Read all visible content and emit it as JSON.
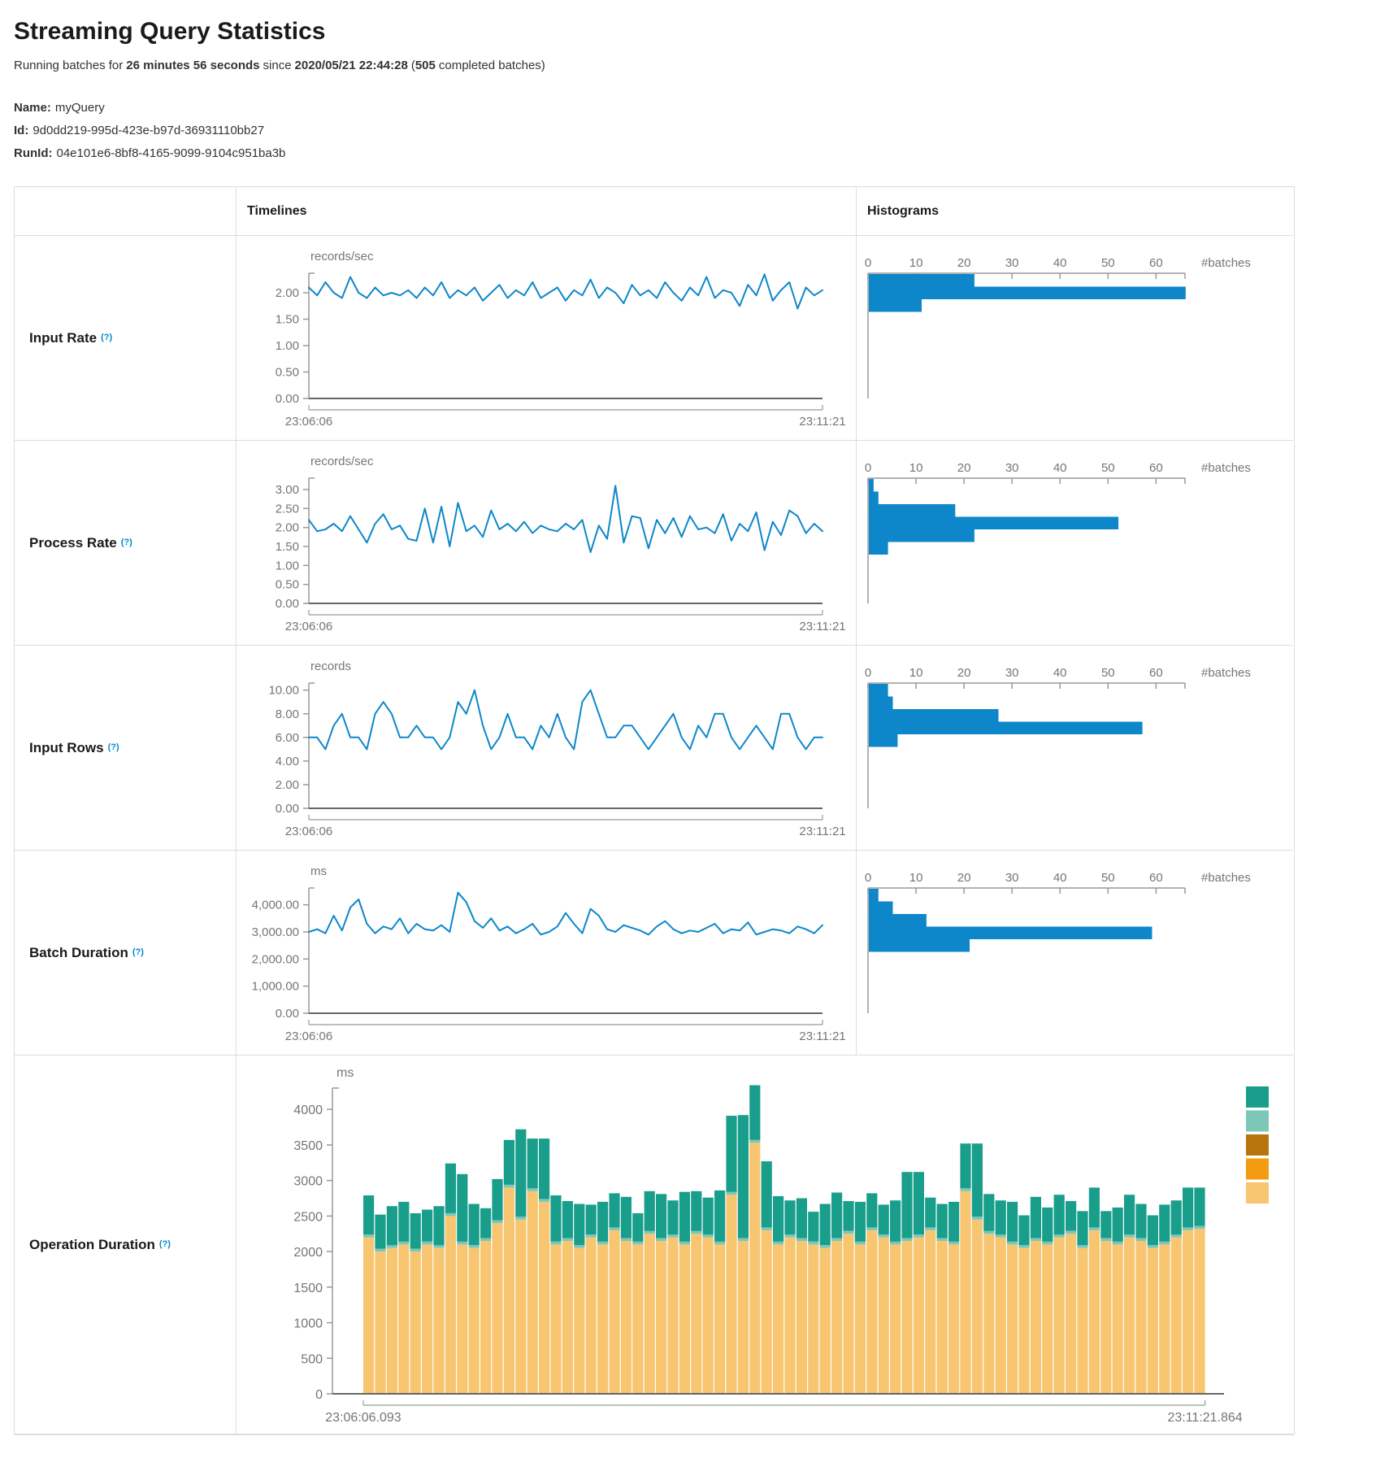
{
  "page": {
    "title": "Streaming Query Statistics",
    "sub": {
      "p1": "Running batches for",
      "b1": "26 minutes 56 seconds",
      "p2": "since",
      "b2": "2020/05/21 22:44:28",
      "p3": "(",
      "b3": "505",
      "p4": "completed batches)"
    }
  },
  "query": {
    "name_label": "Name:",
    "name": "myQuery",
    "id_label": "Id:",
    "id": "9d0dd219-995d-423e-b97d-36931110bb27",
    "runid_label": "RunId:",
    "runid": "04e101e6-8bf8-4165-9099-9104c951ba3b"
  },
  "table": {
    "timelines_header": "Timelines",
    "histograms_header": "Histograms",
    "rows": [
      {
        "label": "Input Rate",
        "help": "(?)"
      },
      {
        "label": "Process Rate",
        "help": "(?)"
      },
      {
        "label": "Input Rows",
        "help": "(?)"
      },
      {
        "label": "Batch Duration",
        "help": "(?)"
      },
      {
        "label": "Operation Duration",
        "help": "(?)"
      }
    ]
  },
  "colors": {
    "line_blue": "#0d87c9",
    "hist_blue": "#0d87c9",
    "axis_line": "#999999",
    "axis_strong": "#666666",
    "tick_text": "#757575",
    "help_blue": "#0088cc",
    "legend": [
      "#1a9e8c",
      "#7cc7b8",
      "#b8750e",
      "#f39c12",
      "#f8c571"
    ],
    "stack": {
      "base": "#f8c571",
      "sliver": "#7cc7b8",
      "top": "#1a9e8c"
    }
  },
  "chart_data": [
    {
      "type": "line",
      "name": "input-rate",
      "unit": "records/sec",
      "x_start": "23:06:06",
      "x_end": "23:11:21",
      "ymax": 2.37,
      "yticks": [
        0,
        0.5,
        1,
        1.5,
        2
      ],
      "ytick_labels": [
        "0.00",
        "0.50",
        "1.00",
        "1.50",
        "2.00"
      ],
      "values": [
        2.1,
        1.95,
        2.2,
        2.0,
        1.9,
        2.3,
        2.0,
        1.9,
        2.1,
        1.95,
        2.0,
        1.95,
        2.05,
        1.9,
        2.1,
        1.95,
        2.2,
        1.9,
        2.05,
        1.95,
        2.1,
        1.85,
        2.0,
        2.15,
        1.9,
        2.05,
        1.95,
        2.2,
        1.9,
        2.0,
        2.1,
        1.85,
        2.05,
        1.95,
        2.25,
        1.9,
        2.1,
        2.0,
        1.8,
        2.15,
        1.95,
        2.05,
        1.9,
        2.2,
        2.0,
        1.85,
        2.1,
        1.95,
        2.3,
        1.9,
        2.05,
        2.0,
        1.75,
        2.15,
        1.95,
        2.35,
        1.85,
        2.05,
        2.2,
        1.7,
        2.1,
        1.95,
        2.05
      ],
      "histogram": {
        "xlabel": "#batches",
        "tick_values": [
          0,
          10,
          20,
          30,
          40,
          50,
          60
        ],
        "counts": [
          22,
          66,
          11
        ]
      }
    },
    {
      "type": "line",
      "name": "process-rate",
      "unit": "records/sec",
      "x_start": "23:06:06",
      "x_end": "23:11:21",
      "ymax": 3.3,
      "yticks": [
        0,
        0.5,
        1,
        1.5,
        2,
        2.5,
        3
      ],
      "ytick_labels": [
        "0.00",
        "0.50",
        "1.00",
        "1.50",
        "2.00",
        "2.50",
        "3.00"
      ],
      "values": [
        2.2,
        1.9,
        1.95,
        2.1,
        1.9,
        2.3,
        1.95,
        1.6,
        2.1,
        2.35,
        1.95,
        2.05,
        1.7,
        1.65,
        2.5,
        1.6,
        2.55,
        1.5,
        2.65,
        1.9,
        2.05,
        1.75,
        2.45,
        1.95,
        2.1,
        1.9,
        2.15,
        1.85,
        2.05,
        1.95,
        1.9,
        2.1,
        1.95,
        2.2,
        1.35,
        2.05,
        1.7,
        3.1,
        1.6,
        2.3,
        2.25,
        1.45,
        2.2,
        1.85,
        2.25,
        1.75,
        2.3,
        1.95,
        2.0,
        1.85,
        2.35,
        1.65,
        2.1,
        1.9,
        2.4,
        1.4,
        2.15,
        1.8,
        2.45,
        2.3,
        1.85,
        2.1,
        1.9
      ],
      "histogram": {
        "xlabel": "#batches",
        "tick_values": [
          0,
          10,
          20,
          30,
          40,
          50,
          60
        ],
        "counts": [
          1,
          2,
          18,
          52,
          22,
          4
        ]
      }
    },
    {
      "type": "line",
      "name": "input-rows",
      "unit": "records",
      "x_start": "23:06:06",
      "x_end": "23:11:21",
      "ymax": 10.6,
      "yticks": [
        0,
        2,
        4,
        6,
        8,
        10
      ],
      "ytick_labels": [
        "0.00",
        "2.00",
        "4.00",
        "6.00",
        "8.00",
        "10.00"
      ],
      "values": [
        6,
        6,
        5,
        7,
        8,
        6,
        6,
        5,
        8,
        9,
        8,
        6,
        6,
        7,
        6,
        6,
        5,
        6,
        9,
        8,
        10,
        7,
        5,
        6,
        8,
        6,
        6,
        5,
        7,
        6,
        8,
        6,
        5,
        9,
        10,
        8,
        6,
        6,
        7,
        7,
        6,
        5,
        6,
        7,
        8,
        6,
        5,
        7,
        6,
        8,
        8,
        6,
        5,
        6,
        7,
        6,
        5,
        8,
        8,
        6,
        5,
        6,
        6
      ],
      "histogram": {
        "xlabel": "#batches",
        "tick_values": [
          0,
          10,
          20,
          30,
          40,
          50,
          60
        ],
        "counts": [
          4,
          5,
          27,
          57,
          6
        ]
      }
    },
    {
      "type": "line",
      "name": "batch-duration",
      "unit": "ms",
      "x_start": "23:06:06",
      "x_end": "23:11:21",
      "ymax": 4620,
      "yticks": [
        0,
        1000,
        2000,
        3000,
        4000
      ],
      "ytick_labels": [
        "0.00",
        "1,000.00",
        "2,000.00",
        "3,000.00",
        "4,000.00"
      ],
      "values": [
        3000,
        3100,
        2950,
        3600,
        3050,
        3900,
        4200,
        3300,
        2950,
        3200,
        3100,
        3500,
        2950,
        3300,
        3100,
        3050,
        3250,
        3000,
        4450,
        4100,
        3400,
        3150,
        3500,
        3050,
        3200,
        2950,
        3100,
        3300,
        2900,
        3000,
        3200,
        3700,
        3300,
        2950,
        3850,
        3600,
        3100,
        3000,
        3250,
        3150,
        3050,
        2900,
        3200,
        3400,
        3100,
        2950,
        3050,
        3000,
        3150,
        3300,
        2950,
        3100,
        3050,
        3350,
        2900,
        3000,
        3100,
        3050,
        2950,
        3200,
        3100,
        2950,
        3250
      ],
      "histogram": {
        "xlabel": "#batches",
        "tick_values": [
          0,
          10,
          20,
          30,
          40,
          50,
          60
        ],
        "counts": [
          2,
          5,
          12,
          59,
          21
        ]
      }
    },
    {
      "type": "stacked-bar",
      "name": "operation-duration",
      "unit": "ms",
      "x_start": "23:06:06.093",
      "x_end": "23:11:21.864",
      "ymax": 4300,
      "yticks": [
        0,
        500,
        1000,
        1500,
        2000,
        2500,
        3000,
        3500,
        4000
      ],
      "ytick_labels": [
        "0",
        "500",
        "1000",
        "1500",
        "2000",
        "2500",
        "3000",
        "3500",
        "4000"
      ],
      "sliver_value": 40,
      "base_values": [
        2200,
        2000,
        2050,
        2100,
        2000,
        2100,
        2050,
        2500,
        2100,
        2050,
        2150,
        2400,
        2900,
        2450,
        2850,
        2700,
        2100,
        2150,
        2050,
        2200,
        2100,
        2300,
        2150,
        2100,
        2250,
        2150,
        2200,
        2100,
        2250,
        2200,
        2100,
        2800,
        2150,
        3530,
        2300,
        2100,
        2200,
        2150,
        2100,
        2050,
        2150,
        2250,
        2100,
        2300,
        2200,
        2100,
        2150,
        2200,
        2300,
        2150,
        2100,
        2850,
        2450,
        2250,
        2200,
        2100,
        2050,
        2150,
        2100,
        2200,
        2250,
        2050,
        2300,
        2150,
        2100,
        2200,
        2150,
        2050,
        2100,
        2200,
        2300,
        2320
      ],
      "top_values": [
        550,
        480,
        550,
        560,
        500,
        450,
        550,
        700,
        950,
        580,
        420,
        580,
        630,
        1230,
        700,
        850,
        650,
        520,
        580,
        420,
        560,
        480,
        580,
        400,
        560,
        620,
        480,
        700,
        560,
        520,
        720,
        1070,
        1730,
        770,
        930,
        640,
        480,
        560,
        420,
        580,
        640,
        420,
        560,
        480,
        420,
        580,
        930,
        880,
        420,
        480,
        560,
        630,
        1030,
        520,
        480,
        560,
        420,
        580,
        480,
        560,
        420,
        480,
        560,
        380,
        480,
        560,
        480,
        420,
        520,
        480,
        560,
        540
      ]
    }
  ]
}
